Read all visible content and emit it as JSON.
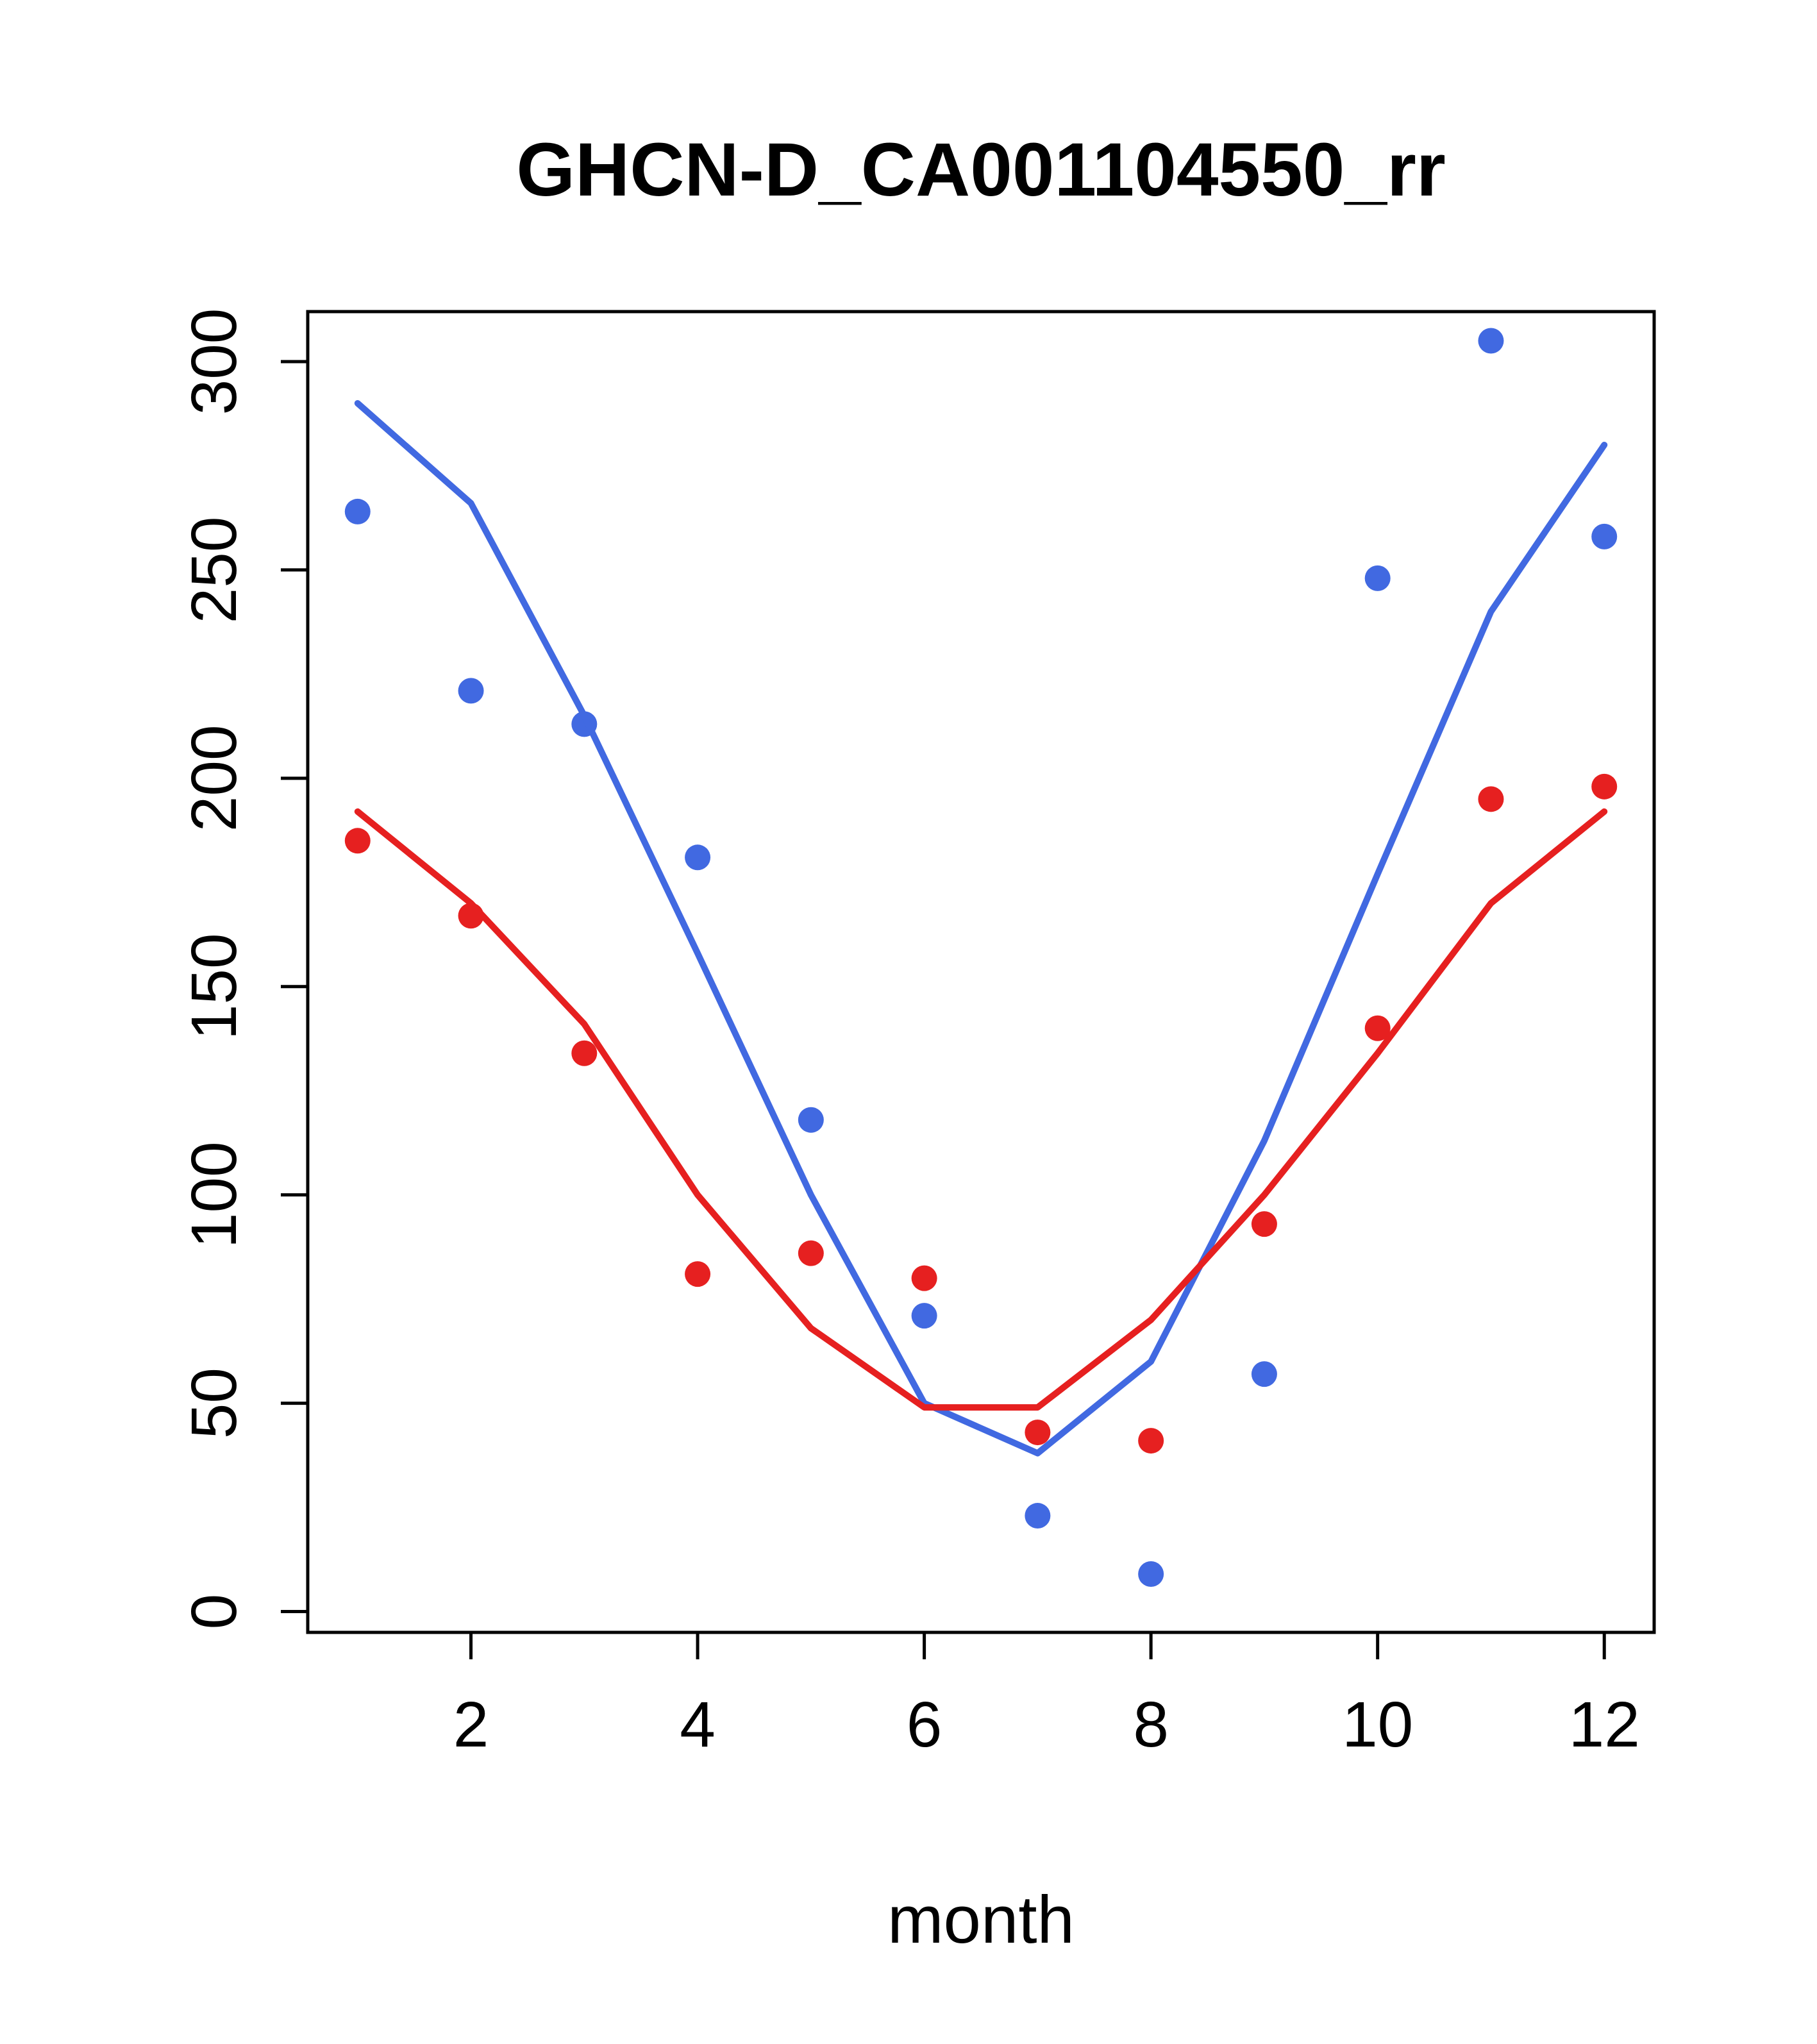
{
  "chart_data": {
    "type": "scatter",
    "title": "GHCN-D_CA001104550_rr",
    "xlabel": "month",
    "ylabel": "",
    "x": [
      1,
      2,
      3,
      4,
      5,
      6,
      7,
      8,
      9,
      10,
      11,
      12
    ],
    "x_ticks": [
      2,
      4,
      6,
      8,
      10,
      12
    ],
    "y_ticks": [
      0,
      50,
      100,
      150,
      200,
      250,
      300
    ],
    "xlim": [
      0.56,
      12.44
    ],
    "ylim": [
      -5,
      312
    ],
    "grid": false,
    "colors": {
      "blue": "#4169E1",
      "red": "#E62020",
      "axis": "#000000",
      "background": "#FFFFFF"
    },
    "series": [
      {
        "name": "blue-points",
        "kind": "points",
        "color": "#4169E1",
        "values": [
          264,
          221,
          213,
          181,
          118,
          71,
          23,
          9,
          57,
          248,
          305,
          258
        ]
      },
      {
        "name": "blue-line",
        "kind": "line",
        "color": "#4169E1",
        "values": [
          290,
          266,
          215,
          158,
          100,
          50,
          38,
          60,
          113,
          177,
          240,
          280
        ]
      },
      {
        "name": "red-points",
        "kind": "points",
        "color": "#E62020",
        "values": [
          185,
          167,
          134,
          81,
          86,
          80,
          43,
          41,
          93,
          140,
          195,
          198
        ]
      },
      {
        "name": "red-line",
        "kind": "line",
        "color": "#E62020",
        "values": [
          192,
          170,
          141,
          100,
          68,
          49,
          49,
          70,
          100,
          134,
          170,
          192
        ]
      }
    ]
  }
}
